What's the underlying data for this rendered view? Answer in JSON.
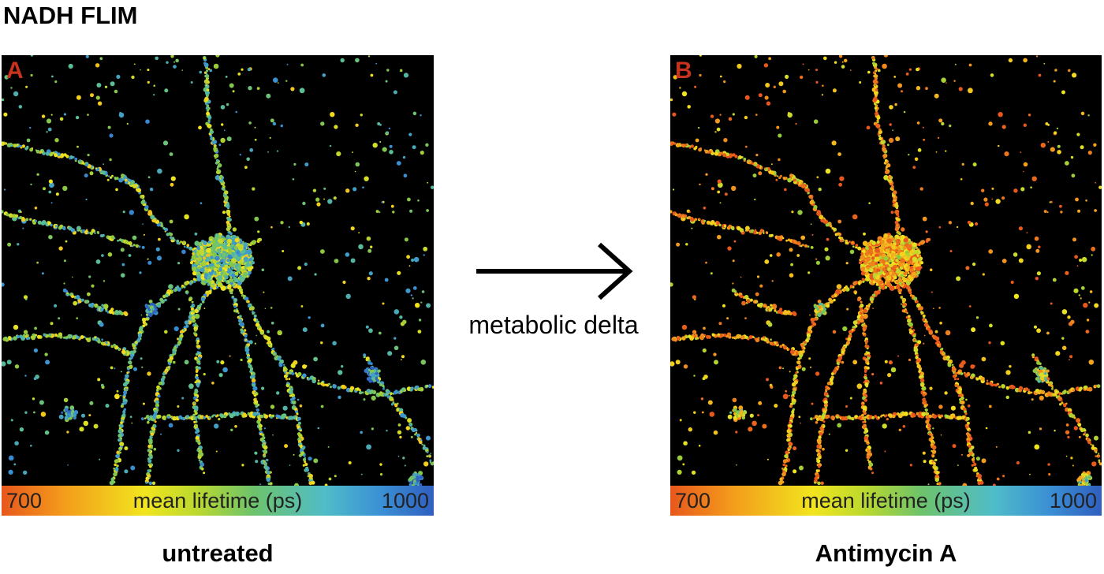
{
  "figure": {
    "title": "NADH FLIM",
    "arrow_label": "metabolic delta"
  },
  "panels": [
    {
      "letter": "A",
      "caption": "untreated",
      "colorbar": {
        "min": "700",
        "label": "mean lifetime (ps)",
        "max": "1000"
      }
    },
    {
      "letter": "B",
      "caption": "Antimycin A",
      "colorbar": {
        "min": "700",
        "label": "mean lifetime (ps)",
        "max": "1000"
      }
    }
  ],
  "colors": {
    "panel_letter": "#c8321e",
    "background_image": "#000000",
    "colormap": [
      "#e8571c",
      "#f39a1c",
      "#f2e51e",
      "#bcd92e",
      "#6ec36a",
      "#4fbcc9",
      "#3a8fd4",
      "#2f5fc0"
    ]
  }
}
